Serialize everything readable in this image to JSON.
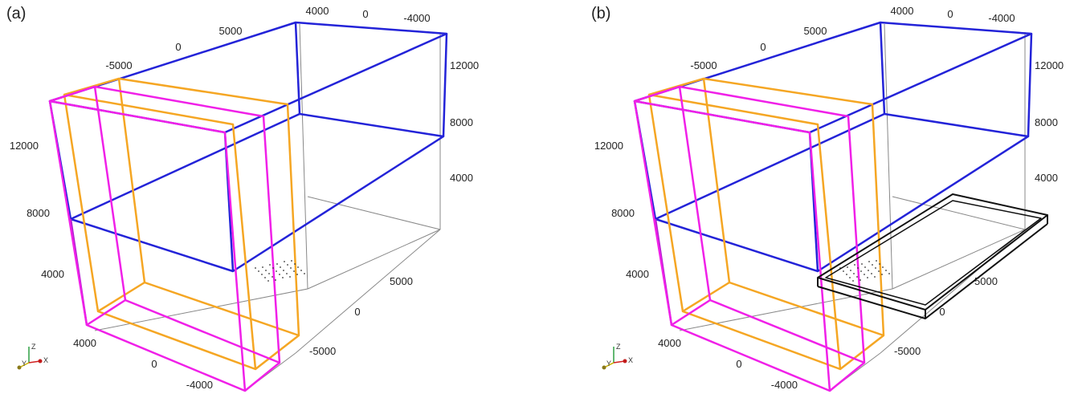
{
  "panels": [
    {
      "label": "(a)",
      "show_footprint": false,
      "ticks": {
        "top_x": [
          "4000",
          "0",
          "-4000"
        ],
        "top_y": [
          "5000",
          "0",
          "-5000"
        ],
        "right_z": [
          "12000",
          "8000",
          "4000"
        ],
        "left_z": [
          "12000",
          "8000",
          "4000"
        ],
        "bottom_x": [
          "4000",
          "0",
          "-4000"
        ],
        "bottom_y": [
          "5000",
          "0",
          "-5000"
        ]
      }
    },
    {
      "label": "(b)",
      "show_footprint": true,
      "ticks": {
        "top_x": [
          "4000",
          "0",
          "-4000"
        ],
        "top_y": [
          "5000",
          "0",
          "-5000"
        ],
        "right_z": [
          "12000",
          "8000",
          "4000"
        ],
        "left_z": [
          "12000",
          "8000",
          "4000"
        ],
        "bottom_x": [
          "4000",
          "0",
          "-4000"
        ],
        "bottom_y": [
          "5000",
          "0",
          "-5000"
        ]
      }
    }
  ],
  "orientation_axes": {
    "z": "Z",
    "y": "Y",
    "x": "X"
  },
  "colors": {
    "outer_frame": "#2323d8",
    "orange_frame": "#f5a623",
    "magenta_frame": "#f020e8",
    "grid": "#888888",
    "footprint": "#111111"
  }
}
